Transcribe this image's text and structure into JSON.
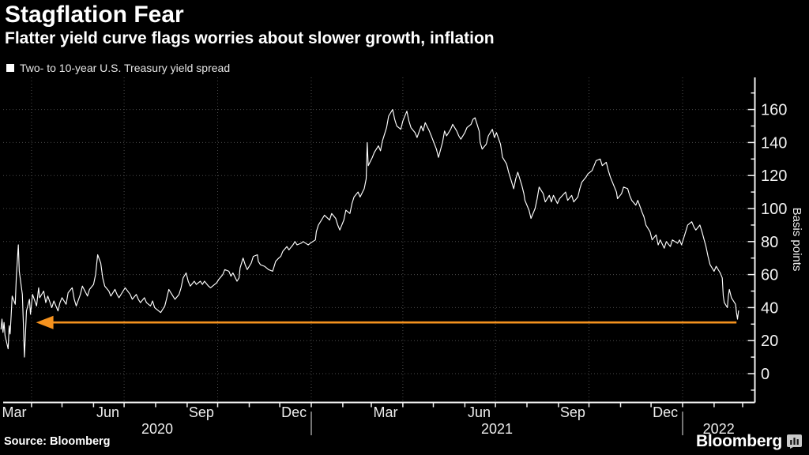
{
  "title": "Stagflation Fear",
  "subtitle": "Flatter yield curve flags worries about slower growth, inflation",
  "legend": {
    "marker": "square",
    "marker_color": "#ffffff",
    "label": "Two- to 10-year U.S. Treasury yield spread"
  },
  "source": "Source:  Bloomberg",
  "brand": {
    "wordmark": "Bloomberg",
    "icon": "bar-chart-bubble-icon"
  },
  "colors": {
    "background": "#000000",
    "line": "#ffffff",
    "axis": "#f2f2f2",
    "grid": "#4c4c4c",
    "annotation_arrow": "#f5921e",
    "year_divider": "#9b9b9b",
    "text": "#ffffff",
    "muted_text": "#ededed"
  },
  "chart_data": {
    "type": "line",
    "series_name": "Two- to 10-year U.S. Treasury yield spread",
    "unit": "basis points",
    "ylabel": "Basis points",
    "grid": true,
    "legend_position": "top-left",
    "y_ticks": [
      0,
      20,
      40,
      60,
      80,
      100,
      120,
      140,
      160
    ],
    "y_minor_tick_step": 10,
    "y_minor_range": [
      -10,
      170
    ],
    "ylim": [
      -18,
      179
    ],
    "x_range": [
      "2020-03-01",
      "2022-03-13"
    ],
    "x_month_labels": [
      {
        "date": "2020-03-15",
        "label": "Mar"
      },
      {
        "date": "2020-06-15",
        "label": "Jun"
      },
      {
        "date": "2020-09-15",
        "label": "Sep"
      },
      {
        "date": "2020-12-15",
        "label": "Dec"
      },
      {
        "date": "2021-03-15",
        "label": "Mar"
      },
      {
        "date": "2021-06-15",
        "label": "Jun"
      },
      {
        "date": "2021-09-15",
        "label": "Sep"
      },
      {
        "date": "2021-12-15",
        "label": "Dec"
      }
    ],
    "x_year_labels": [
      {
        "label": "2020",
        "from": "2020-03-01",
        "to": "2021-01-01"
      },
      {
        "label": "2021",
        "from": "2021-01-01",
        "to": "2022-01-01"
      },
      {
        "label": "2022",
        "from": "2022-01-01",
        "to": "2022-03-13"
      }
    ],
    "year_boundaries": [
      "2021-01-01",
      "2022-01-01"
    ],
    "annotation": {
      "type": "left-arrow",
      "value": 31,
      "from": "2022-02-23",
      "to": "2020-04-07",
      "color": "#f5921e"
    },
    "points": [
      [
        "2020-03-02",
        27
      ],
      [
        "2020-03-03",
        33
      ],
      [
        "2020-03-04",
        25
      ],
      [
        "2020-03-05",
        31
      ],
      [
        "2020-03-06",
        23
      ],
      [
        "2020-03-09",
        15
      ],
      [
        "2020-03-10",
        29
      ],
      [
        "2020-03-11",
        24
      ],
      [
        "2020-03-12",
        35
      ],
      [
        "2020-03-13",
        47
      ],
      [
        "2020-03-16",
        42
      ],
      [
        "2020-03-17",
        58
      ],
      [
        "2020-03-18",
        68
      ],
      [
        "2020-03-19",
        78
      ],
      [
        "2020-03-20",
        62
      ],
      [
        "2020-03-23",
        48
      ],
      [
        "2020-03-24",
        30
      ],
      [
        "2020-03-25",
        10
      ],
      [
        "2020-03-26",
        24
      ],
      [
        "2020-03-27",
        38
      ],
      [
        "2020-03-30",
        45
      ],
      [
        "2020-03-31",
        36
      ],
      [
        "2020-04-02",
        48
      ],
      [
        "2020-04-06",
        41
      ],
      [
        "2020-04-08",
        52
      ],
      [
        "2020-04-09",
        46
      ],
      [
        "2020-04-13",
        50
      ],
      [
        "2020-04-15",
        43
      ],
      [
        "2020-04-17",
        47
      ],
      [
        "2020-04-21",
        40
      ],
      [
        "2020-04-23",
        44
      ],
      [
        "2020-04-27",
        38
      ],
      [
        "2020-04-29",
        43
      ],
      [
        "2020-05-01",
        46
      ],
      [
        "2020-05-05",
        42
      ],
      [
        "2020-05-07",
        49
      ],
      [
        "2020-05-11",
        52
      ],
      [
        "2020-05-13",
        45
      ],
      [
        "2020-05-15",
        41
      ],
      [
        "2020-05-19",
        48
      ],
      [
        "2020-05-21",
        53
      ],
      [
        "2020-05-26",
        47
      ],
      [
        "2020-05-28",
        51
      ],
      [
        "2020-06-01",
        54
      ],
      [
        "2020-06-03",
        60
      ],
      [
        "2020-06-05",
        72
      ],
      [
        "2020-06-08",
        67
      ],
      [
        "2020-06-10",
        58
      ],
      [
        "2020-06-12",
        53
      ],
      [
        "2020-06-16",
        50
      ],
      [
        "2020-06-18",
        47
      ],
      [
        "2020-06-22",
        51
      ],
      [
        "2020-06-24",
        48
      ],
      [
        "2020-06-26",
        46
      ],
      [
        "2020-06-30",
        50
      ],
      [
        "2020-07-02",
        52
      ],
      [
        "2020-07-07",
        48
      ],
      [
        "2020-07-09",
        45
      ],
      [
        "2020-07-13",
        48
      ],
      [
        "2020-07-15",
        45
      ],
      [
        "2020-07-17",
        43
      ],
      [
        "2020-07-21",
        46
      ],
      [
        "2020-07-23",
        43
      ],
      [
        "2020-07-27",
        41
      ],
      [
        "2020-07-29",
        44
      ],
      [
        "2020-07-31",
        40
      ],
      [
        "2020-08-04",
        38
      ],
      [
        "2020-08-06",
        37
      ],
      [
        "2020-08-10",
        41
      ],
      [
        "2020-08-12",
        46
      ],
      [
        "2020-08-14",
        51
      ],
      [
        "2020-08-18",
        47
      ],
      [
        "2020-08-20",
        45
      ],
      [
        "2020-08-24",
        48
      ],
      [
        "2020-08-26",
        52
      ],
      [
        "2020-08-28",
        58
      ],
      [
        "2020-08-31",
        61
      ],
      [
        "2020-09-02",
        56
      ],
      [
        "2020-09-04",
        53
      ],
      [
        "2020-09-08",
        56
      ],
      [
        "2020-09-10",
        54
      ],
      [
        "2020-09-14",
        56
      ],
      [
        "2020-09-16",
        54
      ],
      [
        "2020-09-18",
        56
      ],
      [
        "2020-09-22",
        53
      ],
      [
        "2020-09-24",
        52
      ],
      [
        "2020-09-28",
        54
      ],
      [
        "2020-09-30",
        55
      ],
      [
        "2020-10-02",
        57
      ],
      [
        "2020-10-06",
        60
      ],
      [
        "2020-10-08",
        63
      ],
      [
        "2020-10-12",
        62
      ],
      [
        "2020-10-14",
        59
      ],
      [
        "2020-10-16",
        61
      ],
      [
        "2020-10-20",
        56
      ],
      [
        "2020-10-22",
        58
      ],
      [
        "2020-10-23",
        64
      ],
      [
        "2020-10-26",
        70
      ],
      [
        "2020-10-28",
        66
      ],
      [
        "2020-10-30",
        63
      ],
      [
        "2020-11-03",
        67
      ],
      [
        "2020-11-05",
        71
      ],
      [
        "2020-11-09",
        72
      ],
      [
        "2020-11-10",
        68
      ],
      [
        "2020-11-12",
        66
      ],
      [
        "2020-11-16",
        65
      ],
      [
        "2020-11-20",
        63
      ],
      [
        "2020-11-24",
        62
      ],
      [
        "2020-11-27",
        68
      ],
      [
        "2020-11-30",
        70
      ],
      [
        "2020-12-02",
        71
      ],
      [
        "2020-12-04",
        74
      ],
      [
        "2020-12-08",
        77
      ],
      [
        "2020-12-10",
        75
      ],
      [
        "2020-12-14",
        78
      ],
      [
        "2020-12-16",
        80
      ],
      [
        "2020-12-18",
        78
      ],
      [
        "2020-12-22",
        79
      ],
      [
        "2020-12-24",
        80
      ],
      [
        "2020-12-29",
        78
      ],
      [
        "2020-12-31",
        79
      ],
      [
        "2021-01-05",
        81
      ],
      [
        "2021-01-06",
        86
      ],
      [
        "2021-01-08",
        90
      ],
      [
        "2021-01-12",
        94
      ],
      [
        "2021-01-14",
        96
      ],
      [
        "2021-01-19",
        93
      ],
      [
        "2021-01-21",
        97
      ],
      [
        "2021-01-25",
        94
      ],
      [
        "2021-01-27",
        90
      ],
      [
        "2021-01-29",
        87
      ],
      [
        "2021-02-02",
        93
      ],
      [
        "2021-02-04",
        99
      ],
      [
        "2021-02-08",
        97
      ],
      [
        "2021-02-10",
        103
      ],
      [
        "2021-02-12",
        107
      ],
      [
        "2021-02-16",
        110
      ],
      [
        "2021-02-18",
        107
      ],
      [
        "2021-02-22",
        112
      ],
      [
        "2021-02-24",
        118
      ],
      [
        "2021-02-25",
        140
      ],
      [
        "2021-02-26",
        126
      ],
      [
        "2021-03-02",
        131
      ],
      [
        "2021-03-04",
        134
      ],
      [
        "2021-03-08",
        138
      ],
      [
        "2021-03-10",
        135
      ],
      [
        "2021-03-12",
        141
      ],
      [
        "2021-03-16",
        149
      ],
      [
        "2021-03-18",
        156
      ],
      [
        "2021-03-22",
        160
      ],
      [
        "2021-03-24",
        154
      ],
      [
        "2021-03-26",
        150
      ],
      [
        "2021-03-30",
        148
      ],
      [
        "2021-04-01",
        153
      ],
      [
        "2021-04-05",
        159
      ],
      [
        "2021-04-07",
        153
      ],
      [
        "2021-04-09",
        149
      ],
      [
        "2021-04-13",
        146
      ],
      [
        "2021-04-15",
        143
      ],
      [
        "2021-04-19",
        150
      ],
      [
        "2021-04-21",
        147
      ],
      [
        "2021-04-23",
        152
      ],
      [
        "2021-04-27",
        147
      ],
      [
        "2021-04-29",
        144
      ],
      [
        "2021-05-04",
        136
      ],
      [
        "2021-05-06",
        131
      ],
      [
        "2021-05-10",
        140
      ],
      [
        "2021-05-12",
        147
      ],
      [
        "2021-05-14",
        144
      ],
      [
        "2021-05-18",
        148
      ],
      [
        "2021-05-20",
        151
      ],
      [
        "2021-05-24",
        147
      ],
      [
        "2021-05-26",
        144
      ],
      [
        "2021-05-28",
        142
      ],
      [
        "2021-06-01",
        146
      ],
      [
        "2021-06-03",
        149
      ],
      [
        "2021-06-07",
        151
      ],
      [
        "2021-06-09",
        154
      ],
      [
        "2021-06-11",
        155
      ],
      [
        "2021-06-15",
        147
      ],
      [
        "2021-06-16",
        140
      ],
      [
        "2021-06-18",
        136
      ],
      [
        "2021-06-22",
        139
      ],
      [
        "2021-06-24",
        144
      ],
      [
        "2021-06-28",
        148
      ],
      [
        "2021-06-30",
        143
      ],
      [
        "2021-07-02",
        146
      ],
      [
        "2021-07-06",
        139
      ],
      [
        "2021-07-08",
        131
      ],
      [
        "2021-07-12",
        127
      ],
      [
        "2021-07-14",
        122
      ],
      [
        "2021-07-16",
        118
      ],
      [
        "2021-07-19",
        112
      ],
      [
        "2021-07-21",
        118
      ],
      [
        "2021-07-23",
        122
      ],
      [
        "2021-07-27",
        114
      ],
      [
        "2021-07-29",
        109
      ],
      [
        "2021-07-30",
        105
      ],
      [
        "2021-08-03",
        99
      ],
      [
        "2021-08-05",
        94
      ],
      [
        "2021-08-09",
        100
      ],
      [
        "2021-08-11",
        106
      ],
      [
        "2021-08-13",
        113
      ],
      [
        "2021-08-17",
        109
      ],
      [
        "2021-08-19",
        104
      ],
      [
        "2021-08-23",
        108
      ],
      [
        "2021-08-25",
        104
      ],
      [
        "2021-08-27",
        108
      ],
      [
        "2021-08-31",
        103
      ],
      [
        "2021-09-02",
        106
      ],
      [
        "2021-09-08",
        110
      ],
      [
        "2021-09-10",
        105
      ],
      [
        "2021-09-14",
        108
      ],
      [
        "2021-09-16",
        104
      ],
      [
        "2021-09-20",
        107
      ],
      [
        "2021-09-22",
        112
      ],
      [
        "2021-09-24",
        116
      ],
      [
        "2021-09-28",
        119
      ],
      [
        "2021-09-30",
        121
      ],
      [
        "2021-10-04",
        123
      ],
      [
        "2021-10-06",
        126
      ],
      [
        "2021-10-08",
        129
      ],
      [
        "2021-10-12",
        130
      ],
      [
        "2021-10-14",
        126
      ],
      [
        "2021-10-18",
        128
      ],
      [
        "2021-10-20",
        123
      ],
      [
        "2021-10-22",
        119
      ],
      [
        "2021-10-26",
        113
      ],
      [
        "2021-10-28",
        110
      ],
      [
        "2021-10-29",
        106
      ],
      [
        "2021-11-02",
        109
      ],
      [
        "2021-11-04",
        113
      ],
      [
        "2021-11-08",
        112
      ],
      [
        "2021-11-10",
        108
      ],
      [
        "2021-11-12",
        105
      ],
      [
        "2021-11-16",
        102
      ],
      [
        "2021-11-18",
        105
      ],
      [
        "2021-11-22",
        98
      ],
      [
        "2021-11-24",
        95
      ],
      [
        "2021-11-26",
        90
      ],
      [
        "2021-11-30",
        86
      ],
      [
        "2021-12-02",
        81
      ],
      [
        "2021-12-06",
        84
      ],
      [
        "2021-12-08",
        78
      ],
      [
        "2021-12-10",
        81
      ],
      [
        "2021-12-14",
        76
      ],
      [
        "2021-12-16",
        80
      ],
      [
        "2021-12-20",
        77
      ],
      [
        "2021-12-22",
        81
      ],
      [
        "2021-12-27",
        79
      ],
      [
        "2021-12-29",
        81
      ],
      [
        "2021-12-31",
        78
      ],
      [
        "2022-01-04",
        86
      ],
      [
        "2022-01-06",
        90
      ],
      [
        "2022-01-10",
        92
      ],
      [
        "2022-01-12",
        89
      ],
      [
        "2022-01-14",
        87
      ],
      [
        "2022-01-18",
        90
      ],
      [
        "2022-01-20",
        86
      ],
      [
        "2022-01-24",
        77
      ],
      [
        "2022-01-26",
        71
      ],
      [
        "2022-01-28",
        66
      ],
      [
        "2022-02-01",
        62
      ],
      [
        "2022-02-03",
        65
      ],
      [
        "2022-02-07",
        61
      ],
      [
        "2022-02-09",
        58
      ],
      [
        "2022-02-10",
        47
      ],
      [
        "2022-02-11",
        43
      ],
      [
        "2022-02-14",
        40
      ],
      [
        "2022-02-15",
        47
      ],
      [
        "2022-02-16",
        51
      ],
      [
        "2022-02-18",
        46
      ],
      [
        "2022-02-22",
        42
      ],
      [
        "2022-02-23",
        37
      ],
      [
        "2022-02-24",
        33
      ],
      [
        "2022-02-25",
        38
      ]
    ]
  }
}
